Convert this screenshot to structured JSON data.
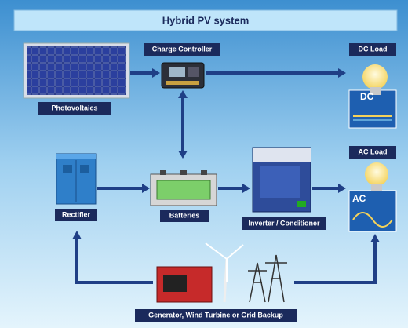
{
  "header": {
    "title": "Hybrid PV system"
  },
  "nodes": [
    {
      "label": "Photovoltaics"
    },
    {
      "label": "Charge Controller"
    },
    {
      "label": "DC Load",
      "badge": "DC"
    },
    {
      "label": "Rectifier"
    },
    {
      "label": "Batteries"
    },
    {
      "label": "Inverter / Conditioner"
    },
    {
      "label": "AC Load",
      "badge": "AC"
    },
    {
      "label": "Generator, Wind Turbine or Grid Backup"
    }
  ]
}
